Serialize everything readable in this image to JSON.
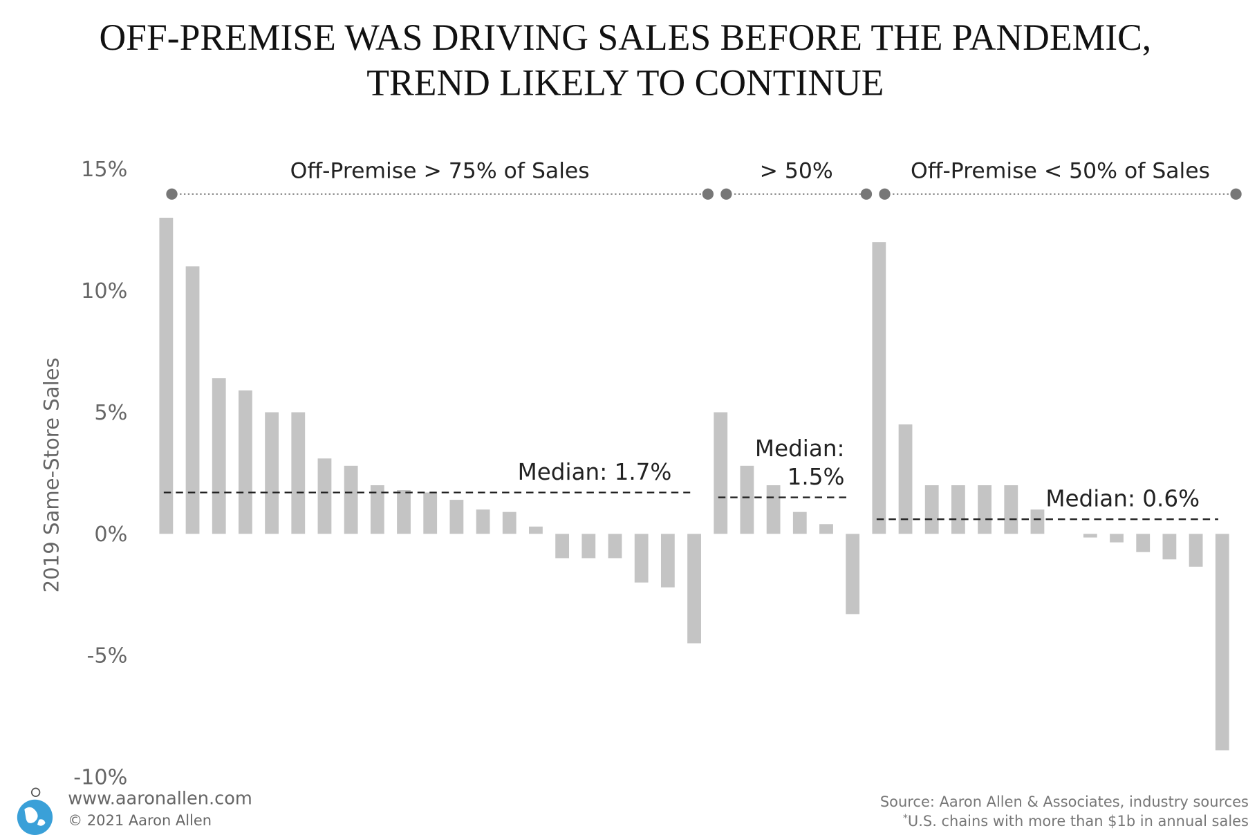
{
  "chart_data": {
    "type": "bar",
    "title": "OFF-PREMISE WAS DRIVING SALES BEFORE THE PANDEMIC, TREND LIKELY TO CONTINUE",
    "y_label": "2019 Same-Store Sales",
    "color": "#c4c4c4",
    "ylim": [
      -10,
      15
    ],
    "yticks": [
      {
        "value": -10,
        "label": "-10%"
      },
      {
        "value": -5,
        "label": "-5%"
      },
      {
        "value": 0,
        "label": "0%"
      },
      {
        "value": 5,
        "label": "5%"
      },
      {
        "value": 10,
        "label": "10%"
      },
      {
        "value": 15,
        "label": "15%"
      }
    ],
    "groups": [
      {
        "label": "Off-Premise > 75% of Sales",
        "values": [
          13,
          11,
          6.4,
          5.9,
          5,
          5,
          3.1,
          2.8,
          2.0,
          1.8,
          1.7,
          1.4,
          1.0,
          0.9,
          0.3,
          -1.0,
          -1.0,
          -1.0,
          -2.0,
          -2.2,
          -4.5
        ],
        "median": 1.7,
        "median_label": [
          "Median: 1.7%"
        ]
      },
      {
        "label": "> 50%",
        "values": [
          5,
          2.8,
          2.0,
          0.9,
          0.4,
          -3.3
        ],
        "median": 1.5,
        "median_label": [
          "Median:",
          "1.5%"
        ]
      },
      {
        "label": "Off-Premise < 50% of Sales",
        "values": [
          12,
          4.5,
          2.0,
          2.0,
          2.0,
          2.0,
          1.0,
          0,
          -0.15,
          -0.35,
          -0.75,
          -1.05,
          -1.35,
          -8.9
        ],
        "median": 0.6,
        "median_label": [
          "Median: 0.6%"
        ]
      }
    ]
  },
  "footer": {
    "website": "www.aaronallen.com",
    "copyright": "© 2021 Aaron Allen",
    "source": "Source: Aaron Allen & Associates, industry sources",
    "note_mark": "*",
    "note": "U.S. chains with more than $1b in annual sales"
  }
}
